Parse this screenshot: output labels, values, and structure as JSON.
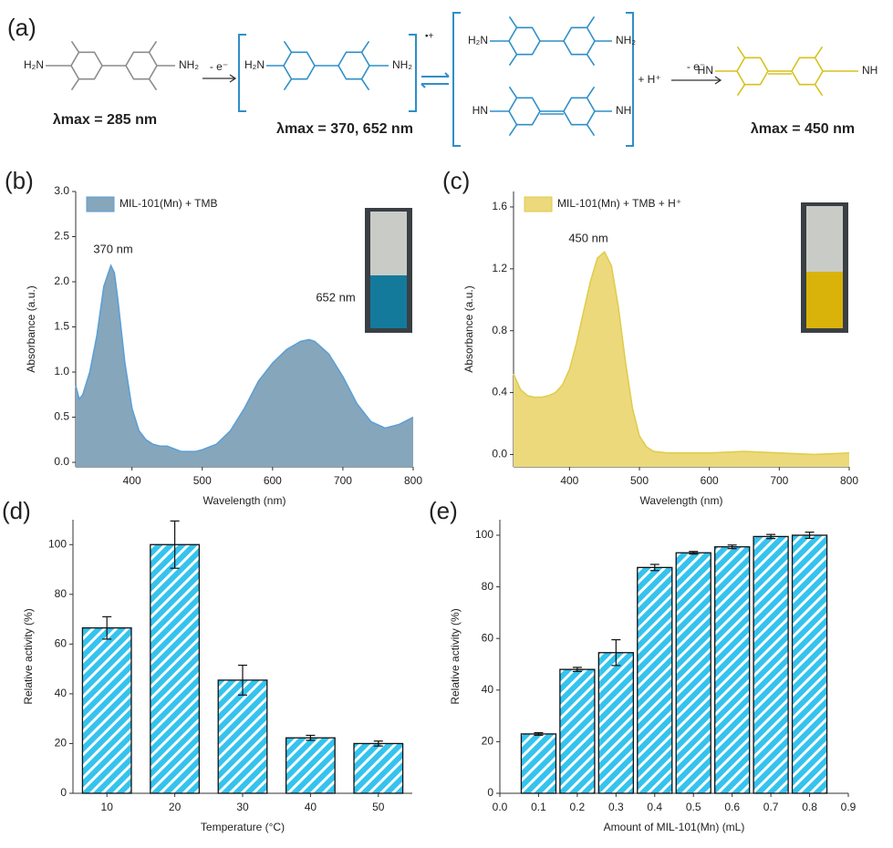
{
  "scheme": {
    "label": "(a)",
    "arrows": [
      "- e⁻",
      "- e⁻"
    ],
    "proton": "+ H⁺",
    "molecules": [
      {
        "left": "H₂N",
        "right": "NH₂",
        "caption": "λmax = 285 nm",
        "color": "#8c8c8c"
      },
      {
        "left": "H₂N",
        "right": "NH₂",
        "charge": "•+",
        "caption": "λmax = 370, 652 nm",
        "color": "#2f8fc8"
      },
      {
        "left": "H₂N",
        "right": "NH₂",
        "color": "#2f8fc8"
      },
      {
        "left": "HN",
        "right": "NH",
        "color": "#2f8fc8"
      },
      {
        "left": "HN",
        "right": "NH",
        "caption": "λmax = 450 nm",
        "color": "#d6c21e"
      }
    ]
  },
  "chart_data": [
    {
      "type": "area",
      "label": "(b)",
      "xlabel": "Wavelength (nm)",
      "ylabel": "Absorbance (a.u.)",
      "annotations": [
        "370 nm",
        "652 nm"
      ],
      "annotation_color": "#3d8ccc",
      "x": [
        320,
        325,
        330,
        340,
        350,
        360,
        370,
        375,
        380,
        390,
        400,
        410,
        420,
        430,
        440,
        450,
        460,
        470,
        480,
        490,
        500,
        520,
        540,
        560,
        580,
        600,
        620,
        640,
        652,
        660,
        680,
        700,
        720,
        740,
        760,
        780,
        800
      ],
      "series": [
        {
          "name": "MIL-101(Mn) + TMB",
          "color": "#86a6bc",
          "line": "#5a9fd6",
          "values": [
            0.85,
            0.7,
            0.75,
            1.0,
            1.4,
            1.95,
            2.18,
            2.1,
            1.8,
            1.1,
            0.6,
            0.35,
            0.25,
            0.2,
            0.18,
            0.18,
            0.15,
            0.12,
            0.12,
            0.12,
            0.14,
            0.2,
            0.35,
            0.6,
            0.9,
            1.1,
            1.25,
            1.34,
            1.36,
            1.34,
            1.2,
            0.95,
            0.65,
            0.45,
            0.38,
            0.42,
            0.5
          ]
        }
      ],
      "xlim": [
        320,
        800
      ],
      "xticks": [
        400,
        500,
        600,
        700,
        800
      ],
      "ylim": [
        -0.05,
        3.0
      ],
      "yticks": [
        {
          "value": 0,
          "label": "0.0"
        },
        0.5,
        {
          "value": 1,
          "label": "1.0"
        },
        1.5,
        {
          "value": 2,
          "label": "2.0"
        },
        2.5,
        {
          "value": 3,
          "label": "3.0"
        }
      ]
    },
    {
      "type": "area",
      "label": "(c)",
      "xlabel": "Wavelength (nm)",
      "ylabel": "Absorbance (a.u.)",
      "annotations": [
        "450 nm"
      ],
      "annotation_color": "#d9c445",
      "x": [
        320,
        330,
        340,
        350,
        360,
        370,
        380,
        390,
        400,
        410,
        420,
        430,
        440,
        450,
        460,
        470,
        480,
        490,
        500,
        510,
        520,
        540,
        600,
        650,
        700,
        750,
        800
      ],
      "series": [
        {
          "name": "MIL-101(Mn) + TMB + H⁺",
          "color": "#ecd97c",
          "line": "#e0cb4a",
          "values": [
            0.52,
            0.42,
            0.38,
            0.37,
            0.37,
            0.38,
            0.4,
            0.45,
            0.55,
            0.72,
            0.92,
            1.12,
            1.27,
            1.31,
            1.22,
            0.95,
            0.6,
            0.3,
            0.12,
            0.05,
            0.02,
            0.01,
            0.01,
            0.02,
            0.01,
            0.0,
            0.01
          ]
        }
      ],
      "xlim": [
        320,
        800
      ],
      "xticks": [
        400,
        500,
        600,
        700,
        800
      ],
      "ylim": [
        -0.08,
        1.7
      ],
      "yticks": [
        {
          "value": 0,
          "label": "0.0"
        },
        0.4,
        0.8,
        1.2,
        1.6
      ]
    },
    {
      "type": "bar",
      "label": "(d)",
      "xlabel": "Temperature (°C)",
      "ylabel": "Relative activity (%)",
      "categories": [
        "10",
        "20",
        "30",
        "40",
        "50"
      ],
      "color": "#35c3ee",
      "values": [
        66.5,
        100,
        45.5,
        22.3,
        20
      ],
      "errors": [
        4.5,
        9.5,
        6,
        1,
        1
      ],
      "ylim": [
        0,
        110
      ],
      "yticks": [
        0,
        20,
        40,
        60,
        80,
        100
      ]
    },
    {
      "type": "bar",
      "label": "(e)",
      "xlabel": "Amount of MIL-101(Mn) (mL)",
      "ylabel": "Relative activity (%)",
      "x": [
        0.1,
        0.2,
        0.3,
        0.4,
        0.5,
        0.6,
        0.7,
        0.8
      ],
      "color": "#35c3ee",
      "values": [
        23,
        48,
        54.5,
        87.5,
        93.2,
        95.5,
        99.5,
        100
      ],
      "errors": [
        0.5,
        0.8,
        5,
        1.2,
        0.5,
        0.7,
        0.8,
        1.2
      ],
      "xlim": [
        0,
        0.9
      ],
      "xticks": [
        {
          "value": 0,
          "label": "0.0"
        },
        0.1,
        0.2,
        0.3,
        0.4,
        0.5,
        0.6,
        0.7,
        0.8,
        0.9
      ],
      "ylim": [
        0,
        106
      ],
      "yticks": [
        0,
        20,
        40,
        60,
        80,
        100
      ]
    }
  ]
}
